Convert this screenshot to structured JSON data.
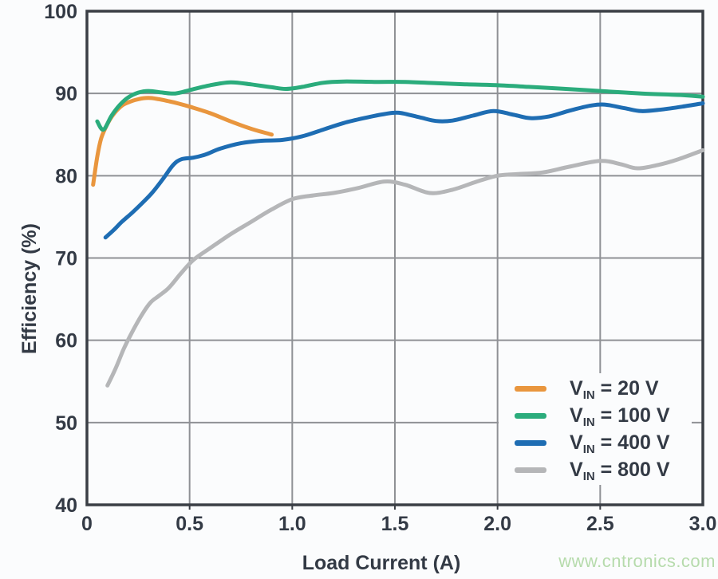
{
  "watermark": "www.cntronics.com",
  "colors": {
    "text": "#333a45",
    "frame": "#3a3e45",
    "grid": "#8f9195",
    "background": "#fbfcfd",
    "watermark": "#b6dbac"
  },
  "legend": {
    "items": [
      {
        "sym": "V",
        "sub": "IN",
        "rest": "= 20 V"
      },
      {
        "sym": "V",
        "sub": "IN",
        "rest": "= 100 V"
      },
      {
        "sym": "V",
        "sub": "IN",
        "rest": "= 400 V"
      },
      {
        "sym": "V",
        "sub": "IN",
        "rest": "= 800 V"
      }
    ]
  },
  "chart_data": {
    "type": "line",
    "title": "",
    "xlabel": "Load Current (A)",
    "ylabel": "Efficiency (%)",
    "xlim": [
      0,
      3.0
    ],
    "ylim": [
      40,
      100
    ],
    "x_ticks": [
      0,
      0.5,
      1.0,
      1.5,
      2.0,
      2.5,
      3.0
    ],
    "x_tick_labels": [
      "0",
      "0.5",
      "1.0",
      "1.5",
      "2.0",
      "2.5",
      "3.0"
    ],
    "y_ticks": [
      40,
      50,
      60,
      70,
      80,
      90,
      100
    ],
    "y_tick_labels": [
      "40",
      "50",
      "60",
      "70",
      "80",
      "90",
      "100"
    ],
    "grid": true,
    "legend_position": "lower right",
    "series": [
      {
        "name": "VIN = 20 V",
        "color": "#e9963e",
        "points": [
          [
            0.03,
            78.9
          ],
          [
            0.05,
            82.3
          ],
          [
            0.07,
            84.6
          ],
          [
            0.1,
            86.3
          ],
          [
            0.13,
            87.5
          ],
          [
            0.17,
            88.5
          ],
          [
            0.2,
            88.9
          ],
          [
            0.25,
            89.3
          ],
          [
            0.3,
            89.45
          ],
          [
            0.35,
            89.3
          ],
          [
            0.4,
            89.05
          ],
          [
            0.45,
            88.75
          ],
          [
            0.5,
            88.4
          ],
          [
            0.6,
            87.6
          ],
          [
            0.7,
            86.6
          ],
          [
            0.8,
            85.7
          ],
          [
            0.9,
            85.0
          ]
        ]
      },
      {
        "name": "VIN = 100 V",
        "color": "#2bac7c",
        "points": [
          [
            0.05,
            86.6
          ],
          [
            0.08,
            85.6
          ],
          [
            0.12,
            87.3
          ],
          [
            0.16,
            88.6
          ],
          [
            0.2,
            89.5
          ],
          [
            0.25,
            90.1
          ],
          [
            0.3,
            90.3
          ],
          [
            0.37,
            90.1
          ],
          [
            0.43,
            90.0
          ],
          [
            0.5,
            90.4
          ],
          [
            0.6,
            91.0
          ],
          [
            0.7,
            91.35
          ],
          [
            0.8,
            91.1
          ],
          [
            0.9,
            90.75
          ],
          [
            0.97,
            90.55
          ],
          [
            1.05,
            90.8
          ],
          [
            1.15,
            91.3
          ],
          [
            1.25,
            91.45
          ],
          [
            1.4,
            91.4
          ],
          [
            1.55,
            91.4
          ],
          [
            1.7,
            91.25
          ],
          [
            1.85,
            91.1
          ],
          [
            2.0,
            91.0
          ],
          [
            2.15,
            90.8
          ],
          [
            2.3,
            90.6
          ],
          [
            2.5,
            90.3
          ],
          [
            2.7,
            90.0
          ],
          [
            2.9,
            89.8
          ],
          [
            3.0,
            89.6
          ]
        ]
      },
      {
        "name": "VIN = 400 V",
        "color": "#1e6db3",
        "points": [
          [
            0.09,
            72.5
          ],
          [
            0.13,
            73.4
          ],
          [
            0.17,
            74.4
          ],
          [
            0.22,
            75.5
          ],
          [
            0.27,
            76.7
          ],
          [
            0.32,
            78.0
          ],
          [
            0.37,
            79.6
          ],
          [
            0.42,
            81.3
          ],
          [
            0.46,
            82.0
          ],
          [
            0.52,
            82.2
          ],
          [
            0.58,
            82.6
          ],
          [
            0.65,
            83.3
          ],
          [
            0.75,
            83.95
          ],
          [
            0.85,
            84.25
          ],
          [
            0.95,
            84.35
          ],
          [
            1.05,
            84.8
          ],
          [
            1.15,
            85.6
          ],
          [
            1.25,
            86.4
          ],
          [
            1.35,
            87.0
          ],
          [
            1.45,
            87.5
          ],
          [
            1.52,
            87.65
          ],
          [
            1.62,
            87.1
          ],
          [
            1.7,
            86.65
          ],
          [
            1.78,
            86.7
          ],
          [
            1.88,
            87.3
          ],
          [
            1.98,
            87.85
          ],
          [
            2.08,
            87.4
          ],
          [
            2.16,
            87.0
          ],
          [
            2.25,
            87.2
          ],
          [
            2.35,
            87.9
          ],
          [
            2.45,
            88.5
          ],
          [
            2.52,
            88.65
          ],
          [
            2.62,
            88.2
          ],
          [
            2.7,
            87.85
          ],
          [
            2.8,
            88.05
          ],
          [
            2.9,
            88.4
          ],
          [
            3.0,
            88.8
          ]
        ]
      },
      {
        "name": "VIN = 800 V",
        "color": "#b5b6b8",
        "points": [
          [
            0.1,
            54.5
          ],
          [
            0.14,
            56.6
          ],
          [
            0.18,
            59.0
          ],
          [
            0.22,
            61.0
          ],
          [
            0.27,
            63.2
          ],
          [
            0.31,
            64.6
          ],
          [
            0.35,
            65.4
          ],
          [
            0.4,
            66.4
          ],
          [
            0.46,
            68.2
          ],
          [
            0.52,
            69.8
          ],
          [
            0.6,
            71.2
          ],
          [
            0.7,
            72.9
          ],
          [
            0.8,
            74.4
          ],
          [
            0.9,
            75.9
          ],
          [
            1.0,
            77.15
          ],
          [
            1.1,
            77.6
          ],
          [
            1.2,
            77.9
          ],
          [
            1.32,
            78.5
          ],
          [
            1.45,
            79.3
          ],
          [
            1.55,
            78.9
          ],
          [
            1.67,
            77.9
          ],
          [
            1.78,
            78.3
          ],
          [
            1.9,
            79.3
          ],
          [
            2.0,
            80.0
          ],
          [
            2.1,
            80.2
          ],
          [
            2.22,
            80.4
          ],
          [
            2.35,
            81.1
          ],
          [
            2.5,
            81.8
          ],
          [
            2.6,
            81.4
          ],
          [
            2.68,
            80.9
          ],
          [
            2.78,
            81.3
          ],
          [
            2.88,
            82.0
          ],
          [
            3.0,
            83.1
          ]
        ]
      }
    ]
  }
}
